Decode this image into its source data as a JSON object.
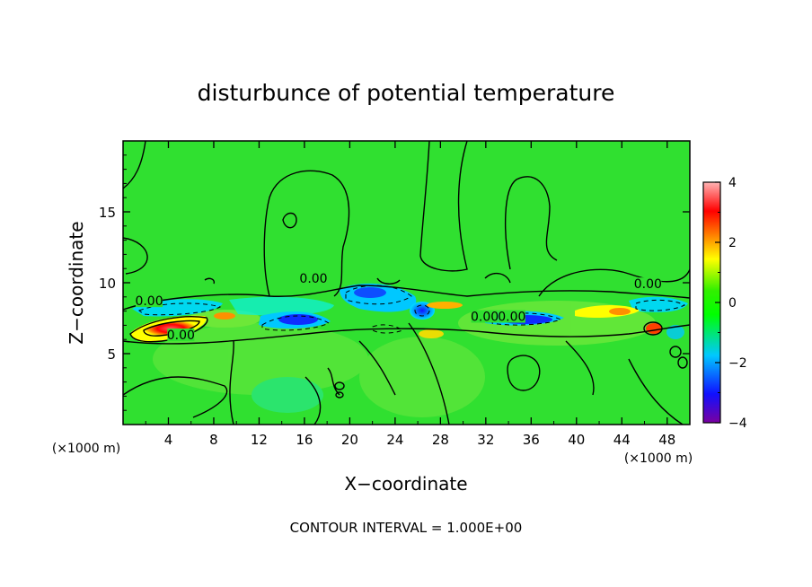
{
  "chart_data": {
    "type": "heatmap",
    "title": "disturbunce of potential temperature",
    "xlabel": "X−coordinate",
    "ylabel": "Z−coordinate",
    "x_unit": "(×1000 m)",
    "z_unit": "(×1000 m)",
    "footer": "CONTOUR INTERVAL = 1.000E+00",
    "xlim": [
      0,
      50
    ],
    "ylim": [
      0,
      20
    ],
    "x_ticks": [
      4,
      8,
      12,
      16,
      20,
      24,
      28,
      32,
      36,
      40,
      44,
      48
    ],
    "y_ticks": [
      5,
      10,
      15
    ],
    "colorbar": {
      "min": -4,
      "max": 4,
      "ticks": [
        4,
        2,
        0,
        -2,
        -4
      ],
      "tick_labels": [
        "4",
        "2",
        "0",
        "−2",
        "−4"
      ],
      "colors": [
        "#7a00a0",
        "#1010ff",
        "#00c8ff",
        "#00ff00",
        "#32f000",
        "#ffff00",
        "#ff8000",
        "#ff0000",
        "#ffb4b4"
      ]
    },
    "background_color": "#30e030",
    "contour_interval": 1.0,
    "contour_labels": [
      {
        "text": "0.00",
        "x": 2.3,
        "z": 8.6
      },
      {
        "text": "0.00",
        "x": 5.1,
        "z": 6.2
      },
      {
        "text": "0.00",
        "x": 16.8,
        "z": 10.2
      },
      {
        "text": "0.00",
        "x": 31.9,
        "z": 7.5
      },
      {
        "text": "0.00",
        "x": 34.3,
        "z": 7.5
      },
      {
        "text": "0.00",
        "x": 46.3,
        "z": 9.8
      }
    ],
    "features": [
      {
        "label": "positive maximum",
        "x": 4.5,
        "z": 7.0,
        "value": 3.5
      },
      {
        "label": "negative minimum",
        "x": 26.5,
        "z": 8.0,
        "value": -3.0
      },
      {
        "label": "negative band",
        "x": 15.0,
        "z": 7.5,
        "value": -2.0
      },
      {
        "label": "negative band",
        "x": 34.5,
        "z": 7.3,
        "value": -2.0
      },
      {
        "label": "positive band",
        "x": 42.5,
        "z": 7.9,
        "value": 1.0
      },
      {
        "label": "positive spot",
        "x": 46.5,
        "z": 6.8,
        "value": 2.0
      }
    ]
  }
}
